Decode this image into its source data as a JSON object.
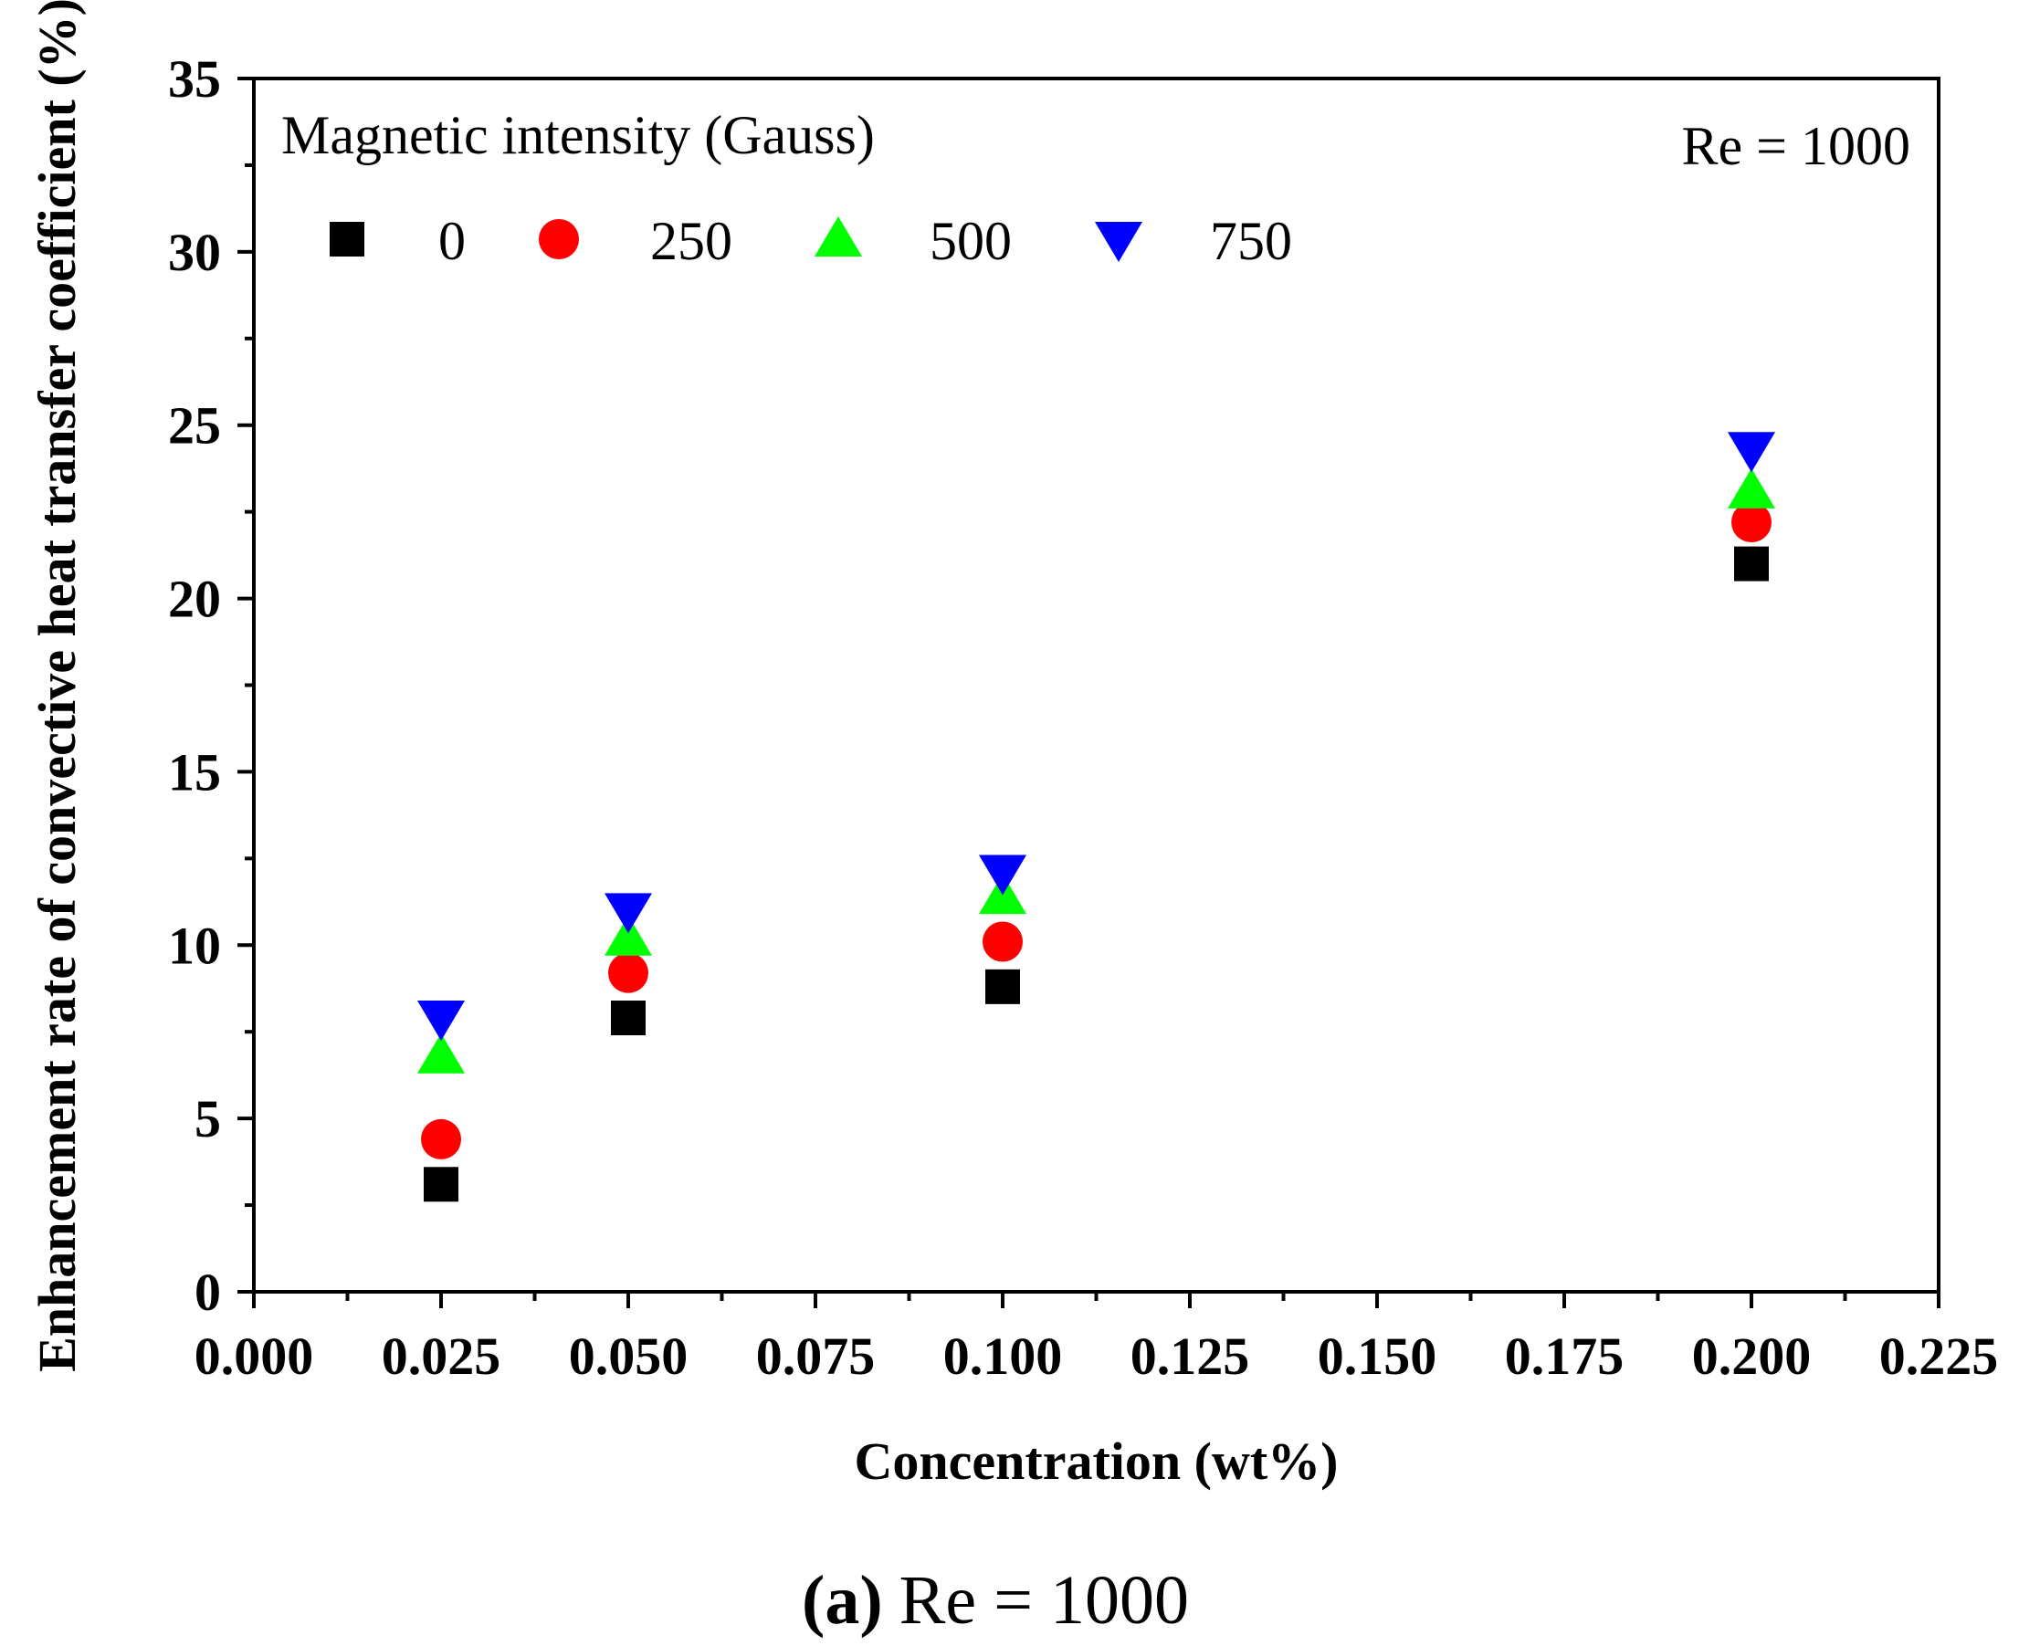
{
  "chart_data": {
    "type": "scatter",
    "title": "",
    "xlabel": "Concentration (wt%)",
    "ylabel": "Enhancement rate of convective heat transfer coefficient (%)",
    "xlim": [
      0.0,
      0.225
    ],
    "ylim": [
      0,
      35
    ],
    "x_ticks": [
      "0.000",
      "0.025",
      "0.050",
      "0.075",
      "0.100",
      "0.125",
      "0.150",
      "0.175",
      "0.200",
      "0.225"
    ],
    "y_ticks": [
      "0",
      "5",
      "10",
      "15",
      "20",
      "25",
      "30",
      "35"
    ],
    "legend_title": "Magnetic intensity (Gauss)",
    "legend_position": "top-left",
    "annotation": "Re = 1000",
    "series": [
      {
        "name": "0",
        "marker": "square",
        "color": "#000000",
        "x": [
          0.025,
          0.05,
          0.1,
          0.2
        ],
        "values": [
          3.1,
          7.9,
          8.8,
          21.0
        ]
      },
      {
        "name": "250",
        "marker": "circle",
        "color": "#ff0000",
        "x": [
          0.025,
          0.05,
          0.1,
          0.2
        ],
        "values": [
          4.4,
          9.2,
          10.1,
          22.2
        ]
      },
      {
        "name": "500",
        "marker": "triangle-up",
        "color": "#00ff00",
        "x": [
          0.025,
          0.05,
          0.1,
          0.2
        ],
        "values": [
          6.8,
          10.2,
          11.4,
          23.1
        ]
      },
      {
        "name": "750",
        "marker": "triangle-down",
        "color": "#0000ff",
        "x": [
          0.025,
          0.05,
          0.1,
          0.2
        ],
        "values": [
          7.9,
          11.0,
          12.1,
          24.3
        ]
      }
    ]
  },
  "caption": {
    "label": "(a)",
    "text": "Re = 1000"
  }
}
